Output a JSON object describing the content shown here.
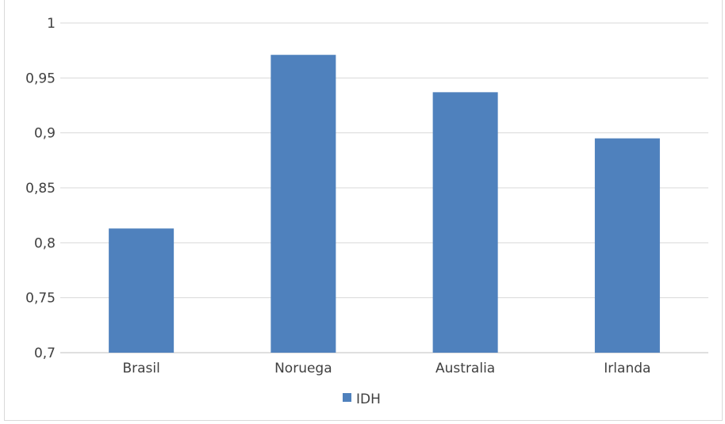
{
  "chart_data": {
    "type": "bar",
    "title": "",
    "xlabel": "",
    "ylabel": "",
    "categories": [
      "Brasil",
      "Noruega",
      "Australia",
      "Irlanda"
    ],
    "series": [
      {
        "name": "IDH",
        "values": [
          0.813,
          0.971,
          0.937,
          0.895
        ],
        "color": "#4f81bd"
      }
    ],
    "ylim": [
      0.7,
      1
    ],
    "yticks": [
      0.7,
      0.75,
      0.8,
      0.85,
      0.9,
      0.95,
      1
    ],
    "ytick_labels": [
      "0,7",
      "0,75",
      "0,8",
      "0,85",
      "0,9",
      "0,95",
      "1"
    ],
    "grid": true,
    "legend_position": "bottom",
    "gridline_color": "#d9d9d9",
    "axis_color": "#bfbfbf"
  }
}
